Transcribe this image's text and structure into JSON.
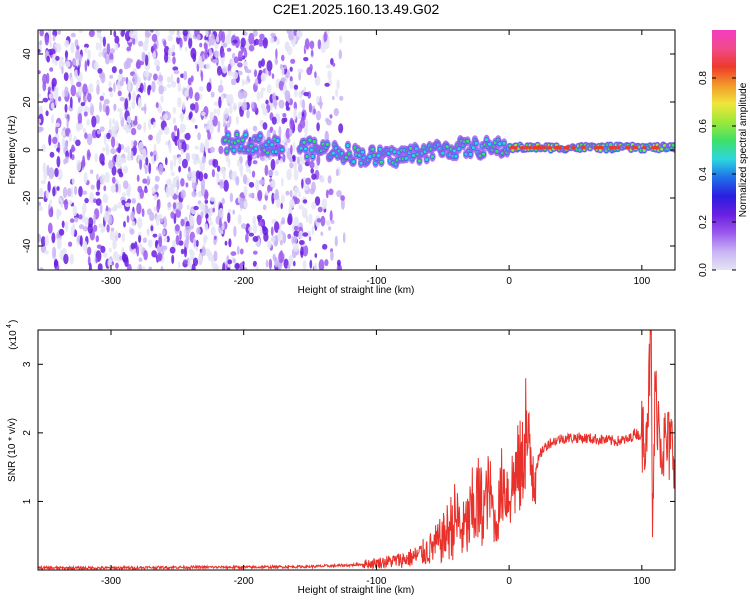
{
  "title": "C2E1.2025.160.13.49.G02",
  "colors": {
    "snr_line": "#e8312a",
    "axis": "#000000",
    "colormap": [
      "#e4e4f4",
      "#c9b4f4",
      "#9b59ee",
      "#6a1fe0",
      "#2a1ee0",
      "#1f6fe8",
      "#2bd6e0",
      "#3ee06a",
      "#9be83a",
      "#f0e63a",
      "#f39a2a",
      "#ee3a2a",
      "#f04a8a",
      "#f43cc0"
    ]
  },
  "chart_data": [
    {
      "type": "heatmap",
      "title": "C2E1.2025.160.13.49.G02",
      "xlabel": "Height of straight line (km)",
      "ylabel": "Frequency (Hz)",
      "xlim": [
        -355,
        125
      ],
      "ylim": [
        -50,
        50
      ],
      "xticks": [
        "-300",
        "-200",
        "-100",
        "0",
        "100"
      ],
      "yticks": [
        "-40",
        "-20",
        "0",
        "20",
        "40"
      ],
      "colorbar": {
        "label": "Normalized spectral amplitude",
        "range": [
          0,
          1
        ],
        "ticks": [
          "0.0",
          "0.2",
          "0.4",
          "0.6",
          "0.8"
        ]
      },
      "features": {
        "noise_region_x": [
          -355,
          -130
        ],
        "signal_track_start_x": -215,
        "signal_track_end_x": 125,
        "signal_frequency_hz": 1
      }
    },
    {
      "type": "line",
      "xlabel": "Height of straight line (km)",
      "ylabel": "SNR (10 * v/v)",
      "exponent_label": "(x10",
      "exponent_power": "4",
      "xlim": [
        -355,
        125
      ],
      "ylim": [
        0,
        3.5
      ],
      "xticks": [
        "-300",
        "-200",
        "-100",
        "0",
        "100"
      ],
      "yticks": [
        "1",
        "2",
        "3"
      ],
      "series": [
        {
          "x": [
            -355,
            -300,
            -250,
            -200,
            -150,
            -120,
            -100,
            -80,
            -70,
            -60,
            -50,
            -45,
            -40,
            -35,
            -30,
            -25,
            -20,
            -15,
            -10,
            -5,
            0,
            5,
            10,
            12,
            15,
            20,
            25,
            30,
            40,
            50,
            60,
            70,
            80,
            90,
            95,
            100,
            103,
            105,
            107,
            108,
            110,
            115,
            120,
            125
          ],
          "y": [
            0.03,
            0.03,
            0.04,
            0.04,
            0.05,
            0.07,
            0.1,
            0.15,
            0.2,
            0.3,
            0.45,
            0.6,
            0.75,
            0.55,
            0.7,
            1.0,
            0.85,
            1.2,
            0.6,
            1.3,
            1.1,
            1.4,
            1.5,
            2.2,
            1.6,
            1.5,
            1.75,
            1.85,
            1.92,
            1.93,
            1.92,
            1.9,
            1.88,
            1.9,
            2.0,
            1.95,
            2.1,
            2.5,
            3.5,
            0.5,
            2.6,
            1.85,
            1.8,
            1.78
          ]
        }
      ]
    }
  ]
}
